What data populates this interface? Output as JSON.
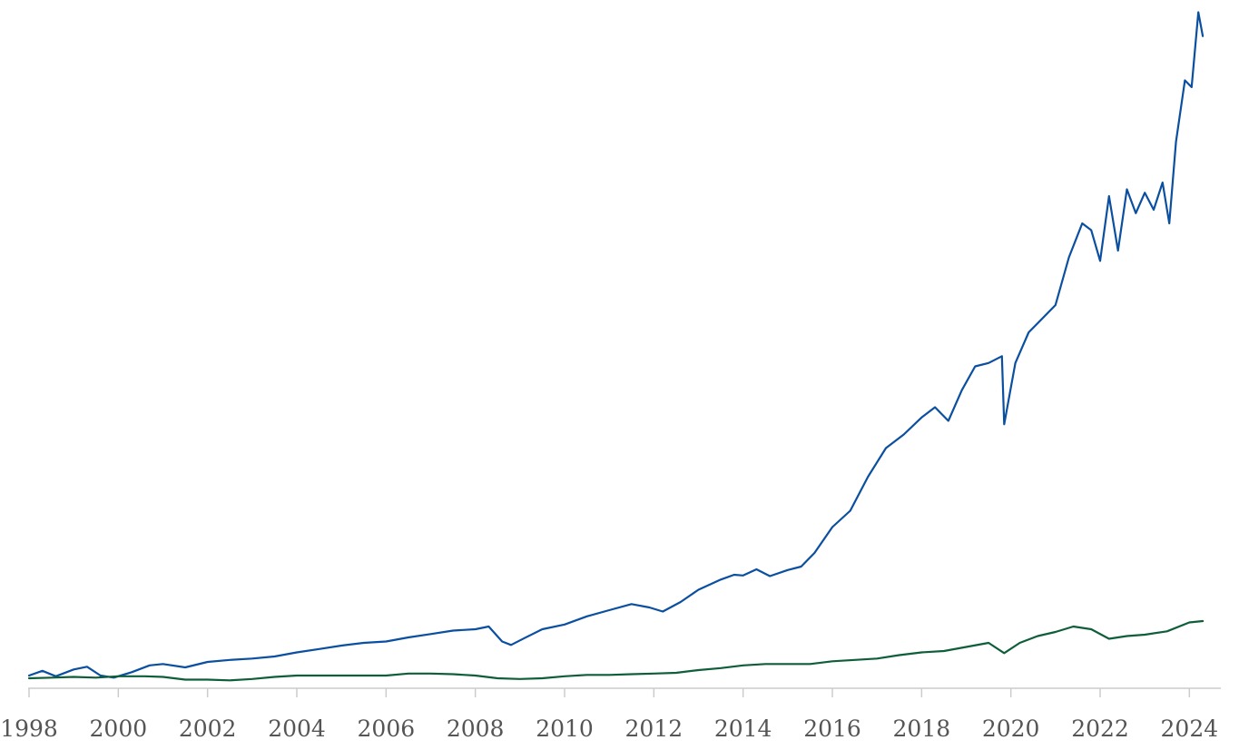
{
  "chart_data": {
    "type": "line",
    "title": "",
    "xlabel": "",
    "ylabel": "",
    "x_ticks": [
      "1998",
      "2000",
      "2002",
      "2004",
      "2006",
      "2008",
      "2010",
      "2012",
      "2014",
      "2016",
      "2018",
      "2020",
      "2022",
      "2024"
    ],
    "xlim": [
      1998.0,
      2024.4
    ],
    "ylim": [
      0,
      100
    ],
    "y_axis_visible": false,
    "grid": false,
    "legend": "none",
    "colors": {
      "series_1": "#0a4fa0",
      "series_2": "#0f5e3a",
      "axis": "#cccccc",
      "tick_text": "#555555"
    },
    "series": [
      {
        "values": [
          [
            1998.0,
            1.6
          ],
          [
            1998.3,
            2.3
          ],
          [
            1998.6,
            1.5
          ],
          [
            1999.0,
            2.5
          ],
          [
            1999.3,
            2.9
          ],
          [
            1999.6,
            1.6
          ],
          [
            1999.9,
            1.3
          ],
          [
            2000.3,
            2.1
          ],
          [
            2000.7,
            3.1
          ],
          [
            2001.0,
            3.3
          ],
          [
            2001.5,
            2.8
          ],
          [
            2002.0,
            3.6
          ],
          [
            2002.5,
            3.9
          ],
          [
            2003.0,
            4.1
          ],
          [
            2003.5,
            4.4
          ],
          [
            2004.0,
            5.0
          ],
          [
            2004.5,
            5.5
          ],
          [
            2005.0,
            6.0
          ],
          [
            2005.5,
            6.4
          ],
          [
            2006.0,
            6.6
          ],
          [
            2006.5,
            7.2
          ],
          [
            2007.0,
            7.7
          ],
          [
            2007.5,
            8.2
          ],
          [
            2008.0,
            8.4
          ],
          [
            2008.3,
            8.8
          ],
          [
            2008.6,
            6.6
          ],
          [
            2008.8,
            6.1
          ],
          [
            2009.1,
            7.1
          ],
          [
            2009.5,
            8.4
          ],
          [
            2010.0,
            9.1
          ],
          [
            2010.5,
            10.3
          ],
          [
            2011.0,
            11.2
          ],
          [
            2011.5,
            12.1
          ],
          [
            2011.9,
            11.6
          ],
          [
            2012.2,
            11.0
          ],
          [
            2012.6,
            12.4
          ],
          [
            2013.0,
            14.2
          ],
          [
            2013.5,
            15.7
          ],
          [
            2013.8,
            16.4
          ],
          [
            2014.0,
            16.3
          ],
          [
            2014.3,
            17.2
          ],
          [
            2014.6,
            16.2
          ],
          [
            2015.0,
            17.1
          ],
          [
            2015.3,
            17.6
          ],
          [
            2015.6,
            19.6
          ],
          [
            2016.0,
            23.4
          ],
          [
            2016.4,
            25.8
          ],
          [
            2016.8,
            30.8
          ],
          [
            2017.2,
            35.0
          ],
          [
            2017.6,
            37.0
          ],
          [
            2018.0,
            39.5
          ],
          [
            2018.3,
            41.0
          ],
          [
            2018.6,
            39.0
          ],
          [
            2018.9,
            43.5
          ],
          [
            2019.2,
            47.0
          ],
          [
            2019.5,
            47.5
          ],
          [
            2019.8,
            48.5
          ],
          [
            2019.85,
            38.5
          ],
          [
            2020.1,
            47.5
          ],
          [
            2020.4,
            52.0
          ],
          [
            2020.7,
            54.0
          ],
          [
            2021.0,
            56.0
          ],
          [
            2021.3,
            63.0
          ],
          [
            2021.6,
            68.0
          ],
          [
            2021.8,
            67.0
          ],
          [
            2022.0,
            62.5
          ],
          [
            2022.2,
            72.0
          ],
          [
            2022.4,
            64.0
          ],
          [
            2022.6,
            73.0
          ],
          [
            2022.8,
            69.5
          ],
          [
            2023.0,
            72.5
          ],
          [
            2023.2,
            70.0
          ],
          [
            2023.4,
            74.0
          ],
          [
            2023.55,
            68.0
          ],
          [
            2023.7,
            80.0
          ],
          [
            2023.9,
            89.0
          ],
          [
            2024.05,
            88.0
          ],
          [
            2024.2,
            99.0
          ],
          [
            2024.3,
            95.5
          ]
        ]
      },
      {
        "values": [
          [
            1998.0,
            1.2
          ],
          [
            1998.5,
            1.3
          ],
          [
            1999.0,
            1.4
          ],
          [
            1999.5,
            1.3
          ],
          [
            2000.0,
            1.5
          ],
          [
            2000.6,
            1.5
          ],
          [
            2001.0,
            1.4
          ],
          [
            2001.5,
            1.0
          ],
          [
            2002.0,
            1.0
          ],
          [
            2002.5,
            0.9
          ],
          [
            2003.0,
            1.1
          ],
          [
            2003.5,
            1.4
          ],
          [
            2004.0,
            1.6
          ],
          [
            2004.5,
            1.6
          ],
          [
            2005.0,
            1.6
          ],
          [
            2005.5,
            1.6
          ],
          [
            2006.0,
            1.6
          ],
          [
            2006.5,
            1.9
          ],
          [
            2007.0,
            1.9
          ],
          [
            2007.5,
            1.8
          ],
          [
            2008.0,
            1.6
          ],
          [
            2008.5,
            1.2
          ],
          [
            2009.0,
            1.1
          ],
          [
            2009.5,
            1.2
          ],
          [
            2010.0,
            1.5
          ],
          [
            2010.5,
            1.7
          ],
          [
            2011.0,
            1.7
          ],
          [
            2011.5,
            1.8
          ],
          [
            2012.0,
            1.9
          ],
          [
            2012.5,
            2.0
          ],
          [
            2013.0,
            2.4
          ],
          [
            2013.5,
            2.7
          ],
          [
            2014.0,
            3.1
          ],
          [
            2014.5,
            3.3
          ],
          [
            2015.0,
            3.3
          ],
          [
            2015.5,
            3.3
          ],
          [
            2016.0,
            3.7
          ],
          [
            2016.5,
            3.9
          ],
          [
            2017.0,
            4.1
          ],
          [
            2017.5,
            4.6
          ],
          [
            2018.0,
            5.0
          ],
          [
            2018.5,
            5.2
          ],
          [
            2019.0,
            5.8
          ],
          [
            2019.5,
            6.4
          ],
          [
            2019.85,
            4.9
          ],
          [
            2020.2,
            6.4
          ],
          [
            2020.6,
            7.4
          ],
          [
            2021.0,
            8.0
          ],
          [
            2021.4,
            8.8
          ],
          [
            2021.8,
            8.4
          ],
          [
            2022.2,
            7.0
          ],
          [
            2022.6,
            7.4
          ],
          [
            2023.0,
            7.6
          ],
          [
            2023.5,
            8.1
          ],
          [
            2024.0,
            9.4
          ],
          [
            2024.3,
            9.6
          ]
        ]
      }
    ]
  }
}
